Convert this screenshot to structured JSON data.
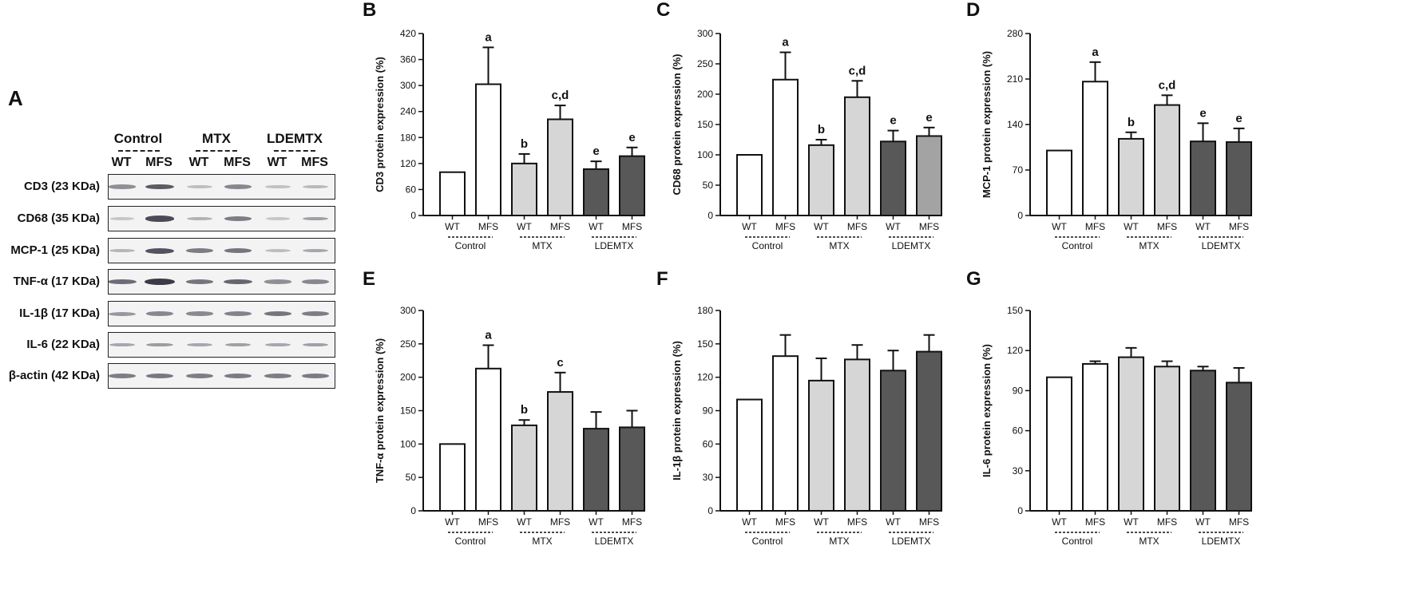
{
  "blot": {
    "panel_letter": "A",
    "groups": [
      "Control",
      "MTX",
      "LDEMTX"
    ],
    "dashes": "---------",
    "lanes": [
      "WT",
      "MFS",
      "WT",
      "MFS",
      "WT",
      "MFS"
    ],
    "rows": [
      {
        "label": "CD3 (23 KDa)",
        "intensities": [
          0.45,
          0.75,
          0.18,
          0.5,
          0.15,
          0.2
        ]
      },
      {
        "label": "CD68 (35 KDa)",
        "intensities": [
          0.12,
          0.85,
          0.25,
          0.55,
          0.12,
          0.35
        ]
      },
      {
        "label": "MCP-1 (25 KDa)",
        "intensities": [
          0.22,
          0.8,
          0.55,
          0.6,
          0.18,
          0.3
        ]
      },
      {
        "label": "TNF-α (17 KDa)",
        "intensities": [
          0.65,
          0.95,
          0.6,
          0.7,
          0.45,
          0.5
        ]
      },
      {
        "label": "IL-1β (17 KDa)",
        "intensities": [
          0.4,
          0.5,
          0.48,
          0.52,
          0.6,
          0.55
        ]
      },
      {
        "label": "IL-6 (22 KDa)",
        "intensities": [
          0.3,
          0.38,
          0.3,
          0.35,
          0.32,
          0.35
        ]
      },
      {
        "label": "β-actin (42 KDa)",
        "intensities": [
          0.55,
          0.58,
          0.55,
          0.56,
          0.55,
          0.56
        ]
      }
    ]
  },
  "colors": {
    "control": "#ffffff",
    "mtx": "#d6d6d6",
    "ldemtx": "#585858",
    "ldemtx_light": "#a3a3a3",
    "axis": "#111111",
    "band": "#2b2b3a"
  },
  "chart_data": [
    {
      "panel": "B",
      "type": "bar",
      "ylabel": "CD3 protein expression (%)",
      "ylim": [
        0,
        420
      ],
      "yticks": [
        0,
        60,
        120,
        180,
        240,
        300,
        360,
        420
      ],
      "categories": [
        "WT",
        "MFS",
        "WT",
        "MFS",
        "WT",
        "MFS"
      ],
      "groups": [
        "Control",
        "MTX",
        "LDEMTX"
      ],
      "values": [
        100,
        303,
        120,
        222,
        107,
        137
      ],
      "errors": [
        0,
        85,
        22,
        32,
        18,
        20
      ],
      "fills": [
        "control",
        "control",
        "mtx",
        "mtx",
        "ldemtx",
        "ldemtx"
      ],
      "annotations": [
        "",
        "a",
        "b",
        "c,d",
        "e",
        "e"
      ]
    },
    {
      "panel": "C",
      "type": "bar",
      "ylabel": "CD68 protein expression (%)",
      "ylim": [
        0,
        300
      ],
      "yticks": [
        0,
        50,
        100,
        150,
        200,
        250,
        300
      ],
      "categories": [
        "WT",
        "MFS",
        "WT",
        "MFS",
        "WT",
        "MFS"
      ],
      "groups": [
        "Control",
        "MTX",
        "LDEMTX"
      ],
      "values": [
        100,
        224,
        116,
        195,
        122,
        131
      ],
      "errors": [
        0,
        45,
        9,
        27,
        18,
        14
      ],
      "fills": [
        "control",
        "control",
        "mtx",
        "mtx",
        "ldemtx",
        "ldemtx_light"
      ],
      "annotations": [
        "",
        "a",
        "b",
        "c,d",
        "e",
        "e"
      ]
    },
    {
      "panel": "D",
      "type": "bar",
      "ylabel": "MCP-1 protein expression (%)",
      "ylim": [
        0,
        280
      ],
      "yticks": [
        0,
        70,
        140,
        210,
        280
      ],
      "categories": [
        "WT",
        "MFS",
        "WT",
        "MFS",
        "WT",
        "MFS"
      ],
      "groups": [
        "Control",
        "MTX",
        "LDEMTX"
      ],
      "values": [
        100,
        206,
        118,
        170,
        114,
        113
      ],
      "errors": [
        0,
        30,
        10,
        15,
        28,
        21
      ],
      "fills": [
        "control",
        "control",
        "mtx",
        "mtx",
        "ldemtx",
        "ldemtx"
      ],
      "annotations": [
        "",
        "a",
        "b",
        "c,d",
        "e",
        "e"
      ]
    },
    {
      "panel": "E",
      "type": "bar",
      "ylabel": "TNF-α protein expression (%)",
      "ylim": [
        0,
        300
      ],
      "yticks": [
        0,
        50,
        100,
        150,
        200,
        250,
        300
      ],
      "categories": [
        "WT",
        "MFS",
        "WT",
        "MFS",
        "WT",
        "MFS"
      ],
      "groups": [
        "Control",
        "MTX",
        "LDEMTX"
      ],
      "values": [
        100,
        213,
        128,
        178,
        123,
        125
      ],
      "errors": [
        0,
        35,
        8,
        29,
        25,
        25
      ],
      "fills": [
        "control",
        "control",
        "mtx",
        "mtx",
        "ldemtx",
        "ldemtx"
      ],
      "annotations": [
        "",
        "a",
        "b",
        "c",
        "",
        ""
      ]
    },
    {
      "panel": "F",
      "type": "bar",
      "ylabel": "IL-1β protein expression (%)",
      "ylim": [
        0,
        180
      ],
      "yticks": [
        0,
        30,
        60,
        90,
        120,
        150,
        180
      ],
      "categories": [
        "WT",
        "MFS",
        "WT",
        "MFS",
        "WT",
        "MFS"
      ],
      "groups": [
        "Control",
        "MTX",
        "LDEMTX"
      ],
      "values": [
        100,
        139,
        117,
        136,
        126,
        143
      ],
      "errors": [
        0,
        19,
        20,
        13,
        18,
        15
      ],
      "fills": [
        "control",
        "control",
        "mtx",
        "mtx",
        "ldemtx",
        "ldemtx"
      ],
      "annotations": [
        "",
        "",
        "",
        "",
        "",
        ""
      ]
    },
    {
      "panel": "G",
      "type": "bar",
      "ylabel": "IL-6 protein expression (%)",
      "ylim": [
        0,
        150
      ],
      "yticks": [
        0,
        30,
        60,
        90,
        120,
        150
      ],
      "categories": [
        "WT",
        "MFS",
        "WT",
        "MFS",
        "WT",
        "MFS"
      ],
      "groups": [
        "Control",
        "MTX",
        "LDEMTX"
      ],
      "values": [
        100,
        110,
        115,
        108,
        105,
        96
      ],
      "errors": [
        0,
        2,
        7,
        4,
        3,
        11
      ],
      "fills": [
        "control",
        "control",
        "mtx",
        "mtx",
        "ldemtx",
        "ldemtx"
      ],
      "annotations": [
        "",
        "",
        "",
        "",
        "",
        ""
      ]
    }
  ]
}
